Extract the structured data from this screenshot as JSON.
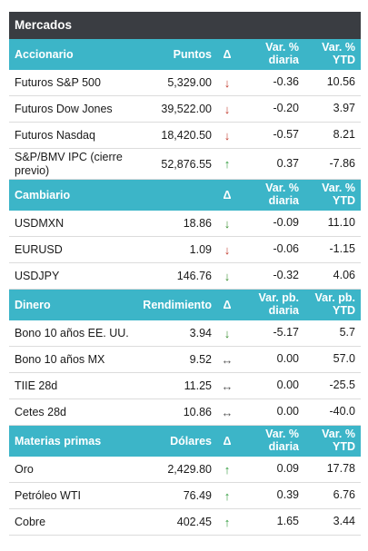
{
  "title": "Mercados",
  "sections": [
    {
      "header": [
        "Accionario",
        "Puntos",
        "Δ",
        "Var. % diaria",
        "Var. % YTD"
      ],
      "rows": [
        {
          "name": "Futuros S&P 500",
          "value": "5,329.00",
          "arrow": "↓",
          "arrow_type": "down",
          "daily": "-0.36",
          "ytd": "10.56"
        },
        {
          "name": "Futuros Dow Jones",
          "value": "39,522.00",
          "arrow": "↓",
          "arrow_type": "down",
          "daily": "-0.20",
          "ytd": "3.97"
        },
        {
          "name": "Futuros Nasdaq",
          "value": "18,420.50",
          "arrow": "↓",
          "arrow_type": "down",
          "daily": "-0.57",
          "ytd": "8.21"
        },
        {
          "name": "S&P/BMV IPC (cierre previo)",
          "value": "52,876.55",
          "arrow": "↑",
          "arrow_type": "up",
          "daily": "0.37",
          "ytd": "-7.86"
        }
      ]
    },
    {
      "header": [
        "Cambiario",
        "",
        "Δ",
        "Var. % diaria",
        "Var. % YTD"
      ],
      "rows": [
        {
          "name": "USDMXN",
          "value": "18.86",
          "arrow": "↓",
          "arrow_type": "down-green",
          "daily": "-0.09",
          "ytd": "11.10"
        },
        {
          "name": "EURUSD",
          "value": "1.09",
          "arrow": "↓",
          "arrow_type": "down",
          "daily": "-0.06",
          "ytd": "-1.15"
        },
        {
          "name": "USDJPY",
          "value": "146.76",
          "arrow": "↓",
          "arrow_type": "down-green",
          "daily": "-0.32",
          "ytd": "4.06"
        }
      ]
    },
    {
      "header": [
        "Dinero",
        "Rendimiento",
        "Δ",
        "Var. pb. diaria",
        "Var. pb. YTD"
      ],
      "rows": [
        {
          "name": "Bono 10 años EE. UU.",
          "value": "3.94",
          "arrow": "↓",
          "arrow_type": "down-green",
          "daily": "-5.17",
          "ytd": "5.7"
        },
        {
          "name": "Bono 10 años MX",
          "value": "9.52",
          "arrow": "↔",
          "arrow_type": "flat",
          "daily": "0.00",
          "ytd": "57.0"
        },
        {
          "name": "TIIE 28d",
          "value": "11.25",
          "arrow": "↔",
          "arrow_type": "flat",
          "daily": "0.00",
          "ytd": "-25.5"
        },
        {
          "name": "Cetes 28d",
          "value": "10.86",
          "arrow": "↔",
          "arrow_type": "flat",
          "daily": "0.00",
          "ytd": "-40.0"
        }
      ]
    },
    {
      "header": [
        "Materias primas",
        "Dólares",
        "Δ",
        "Var. % diaria",
        "Var. % YTD"
      ],
      "rows": [
        {
          "name": "Oro",
          "value": "2,429.80",
          "arrow": "↑",
          "arrow_type": "up",
          "daily": "0.09",
          "ytd": "17.78"
        },
        {
          "name": "Petróleo WTI",
          "value": "76.49",
          "arrow": "↑",
          "arrow_type": "up",
          "daily": "0.39",
          "ytd": "6.76"
        },
        {
          "name": "Cobre",
          "value": "402.45",
          "arrow": "↑",
          "arrow_type": "up",
          "daily": "1.65",
          "ytd": "3.44"
        }
      ]
    }
  ]
}
